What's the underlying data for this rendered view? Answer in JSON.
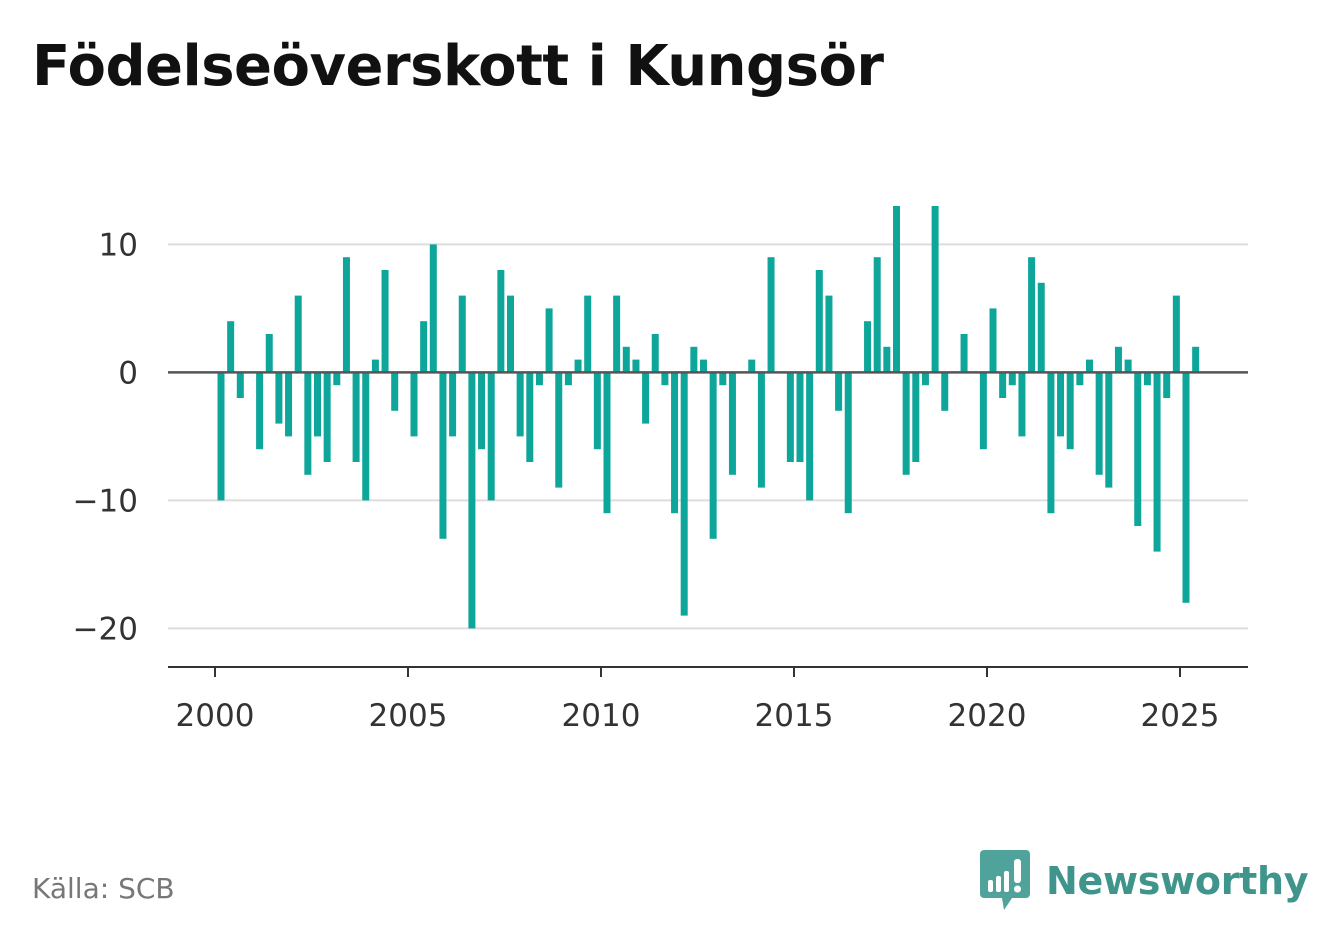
{
  "title": "Födelseöverskott i Kungsör",
  "source": "Källa: SCB",
  "brand": {
    "name": "Newsworthy",
    "icon": "newsworthy-logo-icon",
    "color": "#3f958b"
  },
  "chart_data": {
    "type": "bar",
    "title": "Födelseöverskott i Kungsör",
    "xlabel": "",
    "ylabel": "",
    "x_start": 2000,
    "periods_per_year": 4,
    "values": [
      -10,
      4,
      -2,
      0,
      -6,
      3,
      -4,
      -5,
      6,
      -8,
      -5,
      -7,
      -1,
      9,
      -7,
      -10,
      1,
      8,
      -3,
      0,
      -5,
      4,
      10,
      -13,
      -5,
      6,
      -20,
      -6,
      -10,
      8,
      6,
      -5,
      -7,
      -1,
      5,
      -9,
      -1,
      1,
      6,
      -6,
      -11,
      6,
      2,
      1,
      -4,
      3,
      -1,
      -11,
      -19,
      2,
      1,
      -13,
      -1,
      -8,
      0,
      1,
      -9,
      9,
      0,
      -7,
      -7,
      -10,
      8,
      6,
      -3,
      -11,
      0,
      4,
      9,
      2,
      13,
      -8,
      -7,
      -1,
      13,
      -3,
      0,
      3,
      0,
      -6,
      5,
      -2,
      -1,
      -5,
      9,
      7,
      -11,
      -5,
      -6,
      -1,
      1,
      -8,
      -9,
      2,
      1,
      -12,
      -1,
      -14,
      -2,
      6,
      -18,
      2
    ],
    "ylim": [
      -23,
      15
    ],
    "yticks": [
      10,
      0,
      -10,
      -20
    ],
    "ytick_labels": [
      "10",
      "0",
      "−10",
      "−20"
    ],
    "xticks": [
      2000,
      2005,
      2010,
      2015,
      2020,
      2025
    ],
    "xtick_labels": [
      "2000",
      "2005",
      "2010",
      "2015",
      "2020",
      "2025"
    ],
    "grid": true,
    "legend": "none",
    "colors": {
      "bar": "#0ea69a",
      "grid": "#dddddd",
      "zero_line": "#555555",
      "axis": "#333333"
    }
  }
}
